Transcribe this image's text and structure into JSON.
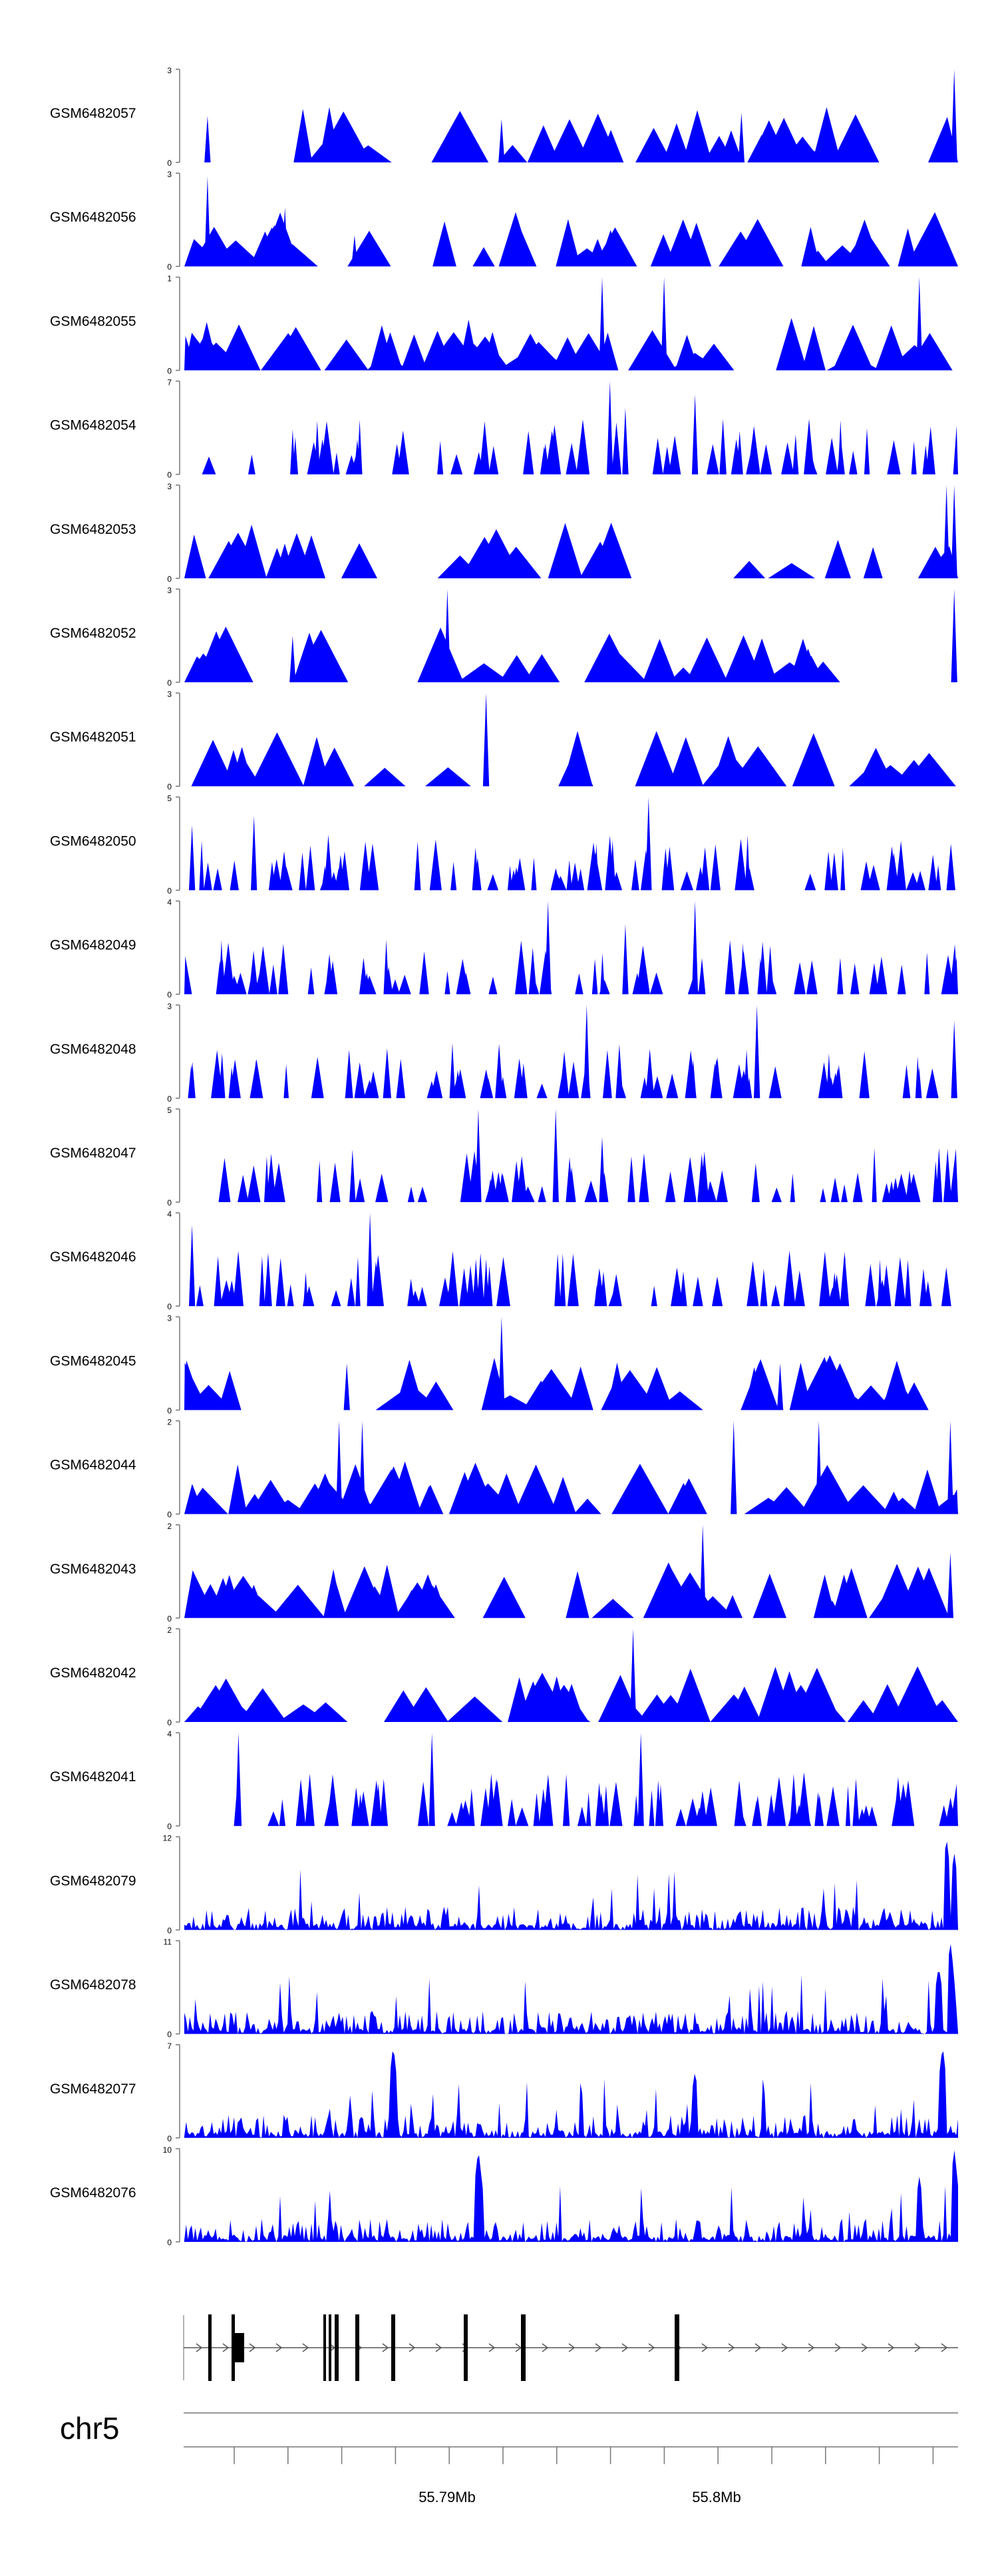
{
  "chart_data": {
    "type": "area",
    "title": "",
    "chromosome": "chr5",
    "x_tick_labels": [
      "55.79Mb",
      "55.8Mb"
    ],
    "colors": {
      "signal": "#0000ff",
      "gene_model": "#000000",
      "axis": "#555555",
      "text": "#000000"
    },
    "tracks": [
      {
        "name": "GSM6482057",
        "ymax": 3,
        "ymin": 0,
        "seed": 57,
        "density": 0.22,
        "peaks": [
          [
            0.03,
            1.5
          ],
          [
            0.41,
            1.4
          ],
          [
            0.72,
            1.6
          ],
          [
            0.995,
            3.0
          ]
        ]
      },
      {
        "name": "GSM6482056",
        "ymax": 3,
        "ymin": 0,
        "seed": 56,
        "density": 0.35,
        "peaks": [
          [
            0.03,
            2.9
          ],
          [
            0.13,
            1.9
          ],
          [
            0.22,
            1.0
          ]
        ]
      },
      {
        "name": "GSM6482055",
        "ymax": 1,
        "ymin": 0,
        "seed": 55,
        "density": 0.55,
        "peaks": [
          [
            0.54,
            1.0
          ],
          [
            0.62,
            1.0
          ],
          [
            0.95,
            1.0
          ]
        ]
      },
      {
        "name": "GSM6482054",
        "ymax": 7,
        "ymin": 0,
        "seed": 54,
        "density": 0.75,
        "peaks": [
          [
            0.55,
            7.0
          ],
          [
            0.57,
            5.0
          ],
          [
            0.66,
            6.0
          ],
          [
            0.79,
            3.0
          ]
        ]
      },
      {
        "name": "GSM6482053",
        "ymax": 3,
        "ymin": 0,
        "seed": 53,
        "density": 0.18,
        "peaks": [
          [
            0.985,
            3.0
          ],
          [
            0.995,
            3.0
          ]
        ]
      },
      {
        "name": "GSM6482052",
        "ymax": 3,
        "ymin": 0,
        "seed": 52,
        "density": 0.22,
        "peaks": [
          [
            0.14,
            1.5
          ],
          [
            0.34,
            3.0
          ],
          [
            0.995,
            3.0
          ]
        ]
      },
      {
        "name": "GSM6482051",
        "ymax": 3,
        "ymin": 0,
        "seed": 51,
        "density": 0.18,
        "peaks": [
          [
            0.39,
            3.0
          ]
        ]
      },
      {
        "name": "GSM6482050",
        "ymax": 5,
        "ymin": 0,
        "seed": 50,
        "density": 0.95,
        "peaks": [
          [
            0.09,
            4.0
          ],
          [
            0.6,
            5.0
          ],
          [
            0.01,
            3.5
          ]
        ]
      },
      {
        "name": "GSM6482049",
        "ymax": 4,
        "ymin": 0,
        "seed": 49,
        "density": 0.85,
        "peaks": [
          [
            0.47,
            4.0
          ],
          [
            0.66,
            4.0
          ],
          [
            0.57,
            3.0
          ]
        ]
      },
      {
        "name": "GSM6482048",
        "ymax": 3,
        "ymin": 0,
        "seed": 48,
        "density": 0.9,
        "peaks": [
          [
            0.52,
            3.0
          ],
          [
            0.74,
            3.0
          ],
          [
            0.995,
            2.5
          ]
        ]
      },
      {
        "name": "GSM6482047",
        "ymax": 5,
        "ymin": 0,
        "seed": 47,
        "density": 0.8,
        "peaks": [
          [
            0.38,
            5.0
          ],
          [
            0.48,
            5.0
          ],
          [
            0.54,
            3.5
          ]
        ]
      },
      {
        "name": "GSM6482046",
        "ymax": 4,
        "ymin": 0,
        "seed": 46,
        "density": 0.95,
        "peaks": [
          [
            0.24,
            4.0
          ],
          [
            0.01,
            3.5
          ]
        ]
      },
      {
        "name": "GSM6482045",
        "ymax": 3,
        "ymin": 0,
        "seed": 45,
        "density": 0.4,
        "peaks": [
          [
            0.41,
            3.0
          ],
          [
            0.21,
            1.5
          ],
          [
            0.77,
            1.5
          ]
        ]
      },
      {
        "name": "GSM6482044",
        "ymax": 2,
        "ymin": 0,
        "seed": 44,
        "density": 0.45,
        "peaks": [
          [
            0.2,
            2.0
          ],
          [
            0.23,
            2.0
          ],
          [
            0.71,
            2.0
          ],
          [
            0.82,
            2.0
          ],
          [
            0.99,
            2.0
          ]
        ]
      },
      {
        "name": "GSM6482043",
        "ymax": 2,
        "ymin": 0,
        "seed": 43,
        "density": 0.5,
        "peaks": [
          [
            0.67,
            2.0
          ],
          [
            0.99,
            1.4
          ]
        ]
      },
      {
        "name": "GSM6482042",
        "ymax": 2,
        "ymin": 0,
        "seed": 42,
        "density": 0.5,
        "peaks": [
          [
            0.58,
            2.0
          ]
        ]
      },
      {
        "name": "GSM6482041",
        "ymax": 4,
        "ymin": 0,
        "seed": 41,
        "density": 1.0,
        "peaks": [
          [
            0.07,
            4.0
          ],
          [
            0.32,
            4.0
          ],
          [
            0.59,
            4.0
          ]
        ]
      },
      {
        "name": "GSM6482079",
        "ymax": 12,
        "ymin": 0,
        "seed": 79,
        "density": 1.0,
        "smooth": true,
        "peaks": [
          [
            0.985,
            12.0
          ],
          [
            0.995,
            10.0
          ]
        ]
      },
      {
        "name": "GSM6482078",
        "ymax": 11,
        "ymin": 0,
        "seed": 78,
        "density": 1.0,
        "smooth": true,
        "peaks": [
          [
            0.99,
            11.0
          ],
          [
            0.975,
            8.0
          ]
        ]
      },
      {
        "name": "GSM6482077",
        "ymax": 7,
        "ymin": 0,
        "seed": 77,
        "density": 1.0,
        "smooth": true,
        "peaks": [
          [
            0.27,
            7.0
          ],
          [
            0.98,
            7.0
          ],
          [
            0.66,
            5.0
          ]
        ]
      },
      {
        "name": "GSM6482076",
        "ymax": 10,
        "ymin": 0,
        "seed": 76,
        "density": 1.0,
        "smooth": true,
        "peaks": [
          [
            0.38,
            10.0
          ],
          [
            0.995,
            10.0
          ],
          [
            0.95,
            7.0
          ]
        ]
      }
    ]
  }
}
